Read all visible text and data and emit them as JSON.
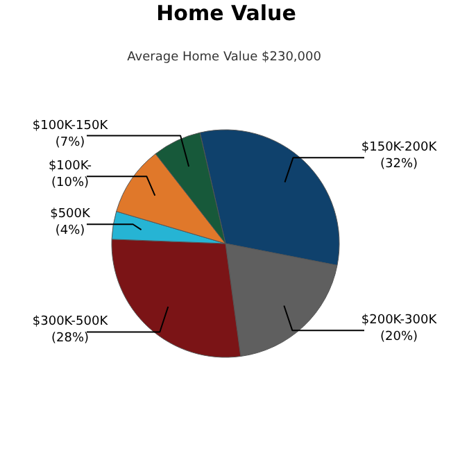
{
  "chart_data": {
    "type": "pie",
    "title": "Home Value",
    "subtitle": "Average Home Value  $230,000",
    "categories": [
      "$150K-200K",
      "$200K-300K",
      "$300K-500K",
      "$500K",
      "$100K-",
      "$100K-150K"
    ],
    "values": [
      32,
      20,
      28,
      4,
      10,
      7
    ],
    "value_labels": [
      "(32%)",
      "(20%)",
      "(28%)",
      "(4%)",
      "(10%)",
      "(7%)"
    ],
    "colors": [
      "#0f416c",
      "#5f5f5f",
      "#7b1416",
      "#26b4d4",
      "#e0782a",
      "#17593a"
    ]
  }
}
